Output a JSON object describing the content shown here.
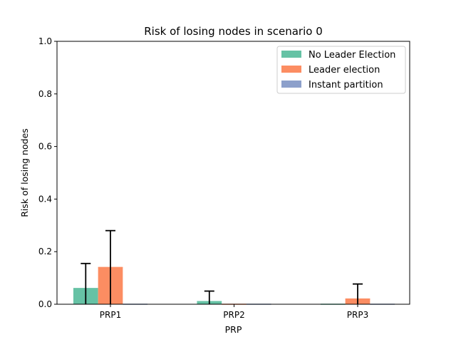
{
  "chart_data": {
    "type": "bar",
    "title": "Risk of losing nodes in scenario 0",
    "xlabel": "PRP",
    "ylabel": "Risk of losing nodes",
    "ylim": [
      0,
      1.0
    ],
    "yticks": [
      0.0,
      0.2,
      0.4,
      0.6,
      0.8,
      1.0
    ],
    "ytick_labels": [
      "0.0",
      "0.2",
      "0.4",
      "0.6",
      "0.8",
      "1.0"
    ],
    "categories": [
      "PRP1",
      "PRP2",
      "PRP3"
    ],
    "grid": false,
    "legend_position": "top-right",
    "series": [
      {
        "name": "No Leader Election",
        "color": "#66c2a5",
        "values": [
          0.06,
          0.01,
          0.0
        ],
        "errors": [
          0.095,
          0.04,
          0.0
        ]
      },
      {
        "name": "Leader election",
        "color": "#fc8d62",
        "values": [
          0.14,
          0.0,
          0.02
        ],
        "errors": [
          0.14,
          0.0,
          0.057
        ]
      },
      {
        "name": "Instant partition",
        "color": "#8da0cb",
        "values": [
          0.0,
          0.0,
          0.0
        ],
        "errors": [
          0.0,
          0.0,
          0.0
        ]
      }
    ]
  }
}
